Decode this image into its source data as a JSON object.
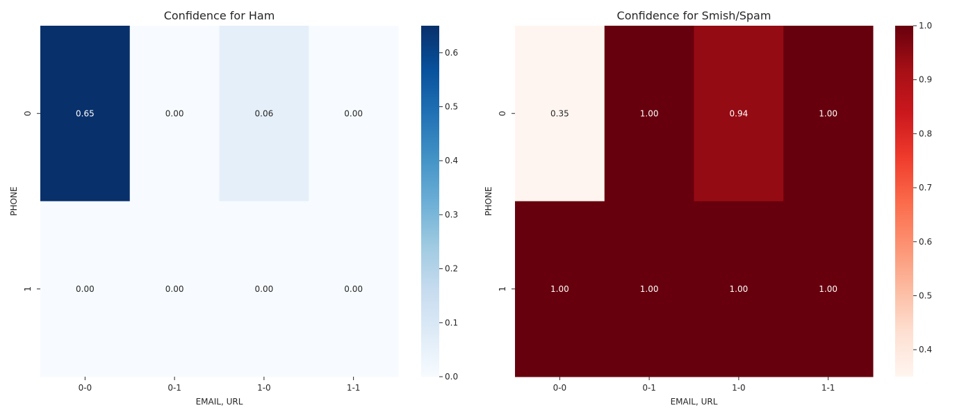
{
  "chart_data": [
    {
      "type": "heatmap",
      "title": "Confidence for Ham",
      "xlabel": "EMAIL, URL",
      "ylabel": "PHONE",
      "x_categories": [
        "0-0",
        "0-1",
        "1-0",
        "1-1"
      ],
      "y_categories": [
        "0",
        "1"
      ],
      "values": [
        [
          0.65,
          0.0,
          0.06,
          0.0
        ],
        [
          0.0,
          0.0,
          0.0,
          0.0
        ]
      ],
      "value_labels": [
        [
          "0.65",
          "0.00",
          "0.06",
          "0.00"
        ],
        [
          "0.00",
          "0.00",
          "0.00",
          "0.00"
        ]
      ],
      "colormap": "Blues",
      "colorbar": {
        "range": [
          0.0,
          0.65
        ],
        "ticks": [
          0.0,
          0.1,
          0.2,
          0.3,
          0.4,
          0.5,
          0.6
        ],
        "tick_labels": [
          "0.0",
          "0.1",
          "0.2",
          "0.3",
          "0.4",
          "0.5",
          "0.6"
        ],
        "colors": [
          "#f7fbff",
          "#deebf7",
          "#c6dbef",
          "#9ecae1",
          "#6baed6",
          "#4292c6",
          "#2171b5",
          "#08519c",
          "#08306b"
        ]
      }
    },
    {
      "type": "heatmap",
      "title": "Confidence for Smish/Spam",
      "xlabel": "EMAIL, URL",
      "ylabel": "PHONE",
      "x_categories": [
        "0-0",
        "0-1",
        "1-0",
        "1-1"
      ],
      "y_categories": [
        "0",
        "1"
      ],
      "values": [
        [
          0.35,
          1.0,
          0.94,
          1.0
        ],
        [
          1.0,
          1.0,
          1.0,
          1.0
        ]
      ],
      "value_labels": [
        [
          "0.35",
          "1.00",
          "0.94",
          "1.00"
        ],
        [
          "1.00",
          "1.00",
          "1.00",
          "1.00"
        ]
      ],
      "colormap": "Reds",
      "colorbar": {
        "range": [
          0.35,
          1.0
        ],
        "ticks": [
          0.4,
          0.5,
          0.6,
          0.7,
          0.8,
          0.9,
          1.0
        ],
        "tick_labels": [
          "0.4",
          "0.5",
          "0.6",
          "0.7",
          "0.8",
          "0.9",
          "1.0"
        ],
        "colors": [
          "#fff5f0",
          "#fee0d2",
          "#fcbba1",
          "#fc9272",
          "#fb6a4a",
          "#ef3b2c",
          "#cb181d",
          "#a50f15",
          "#67000d"
        ]
      }
    }
  ]
}
